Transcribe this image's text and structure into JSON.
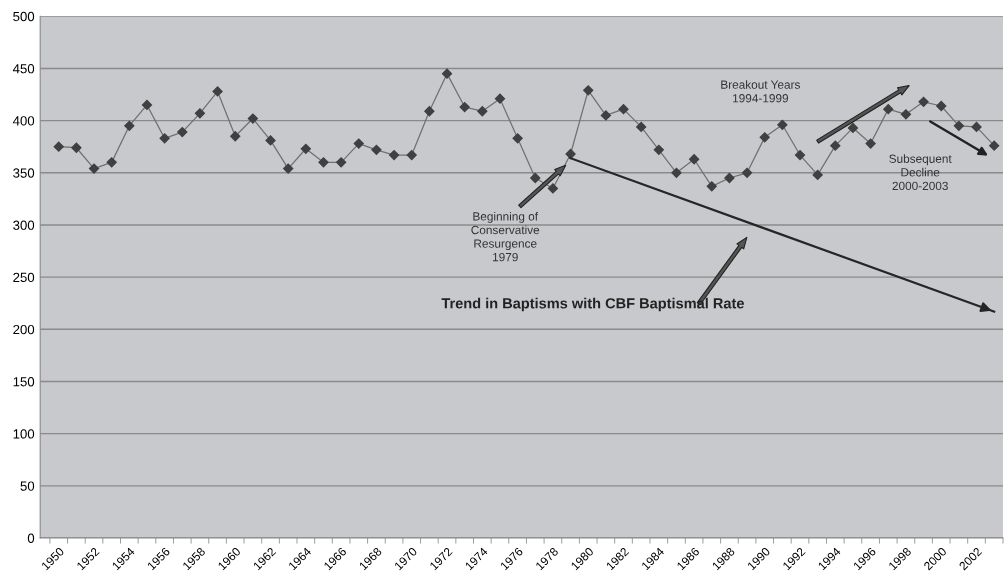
{
  "chart_data": {
    "type": "line",
    "categories": [
      "1950",
      null,
      "1952",
      null,
      "1954",
      null,
      "1956",
      null,
      "1958",
      null,
      "1960",
      null,
      "1962",
      null,
      "1964",
      null,
      "1966",
      null,
      "1968",
      null,
      "1970",
      null,
      "1972",
      null,
      "1974",
      null,
      "1976",
      null,
      "1978",
      null,
      "1980",
      null,
      "1982",
      null,
      "1984",
      null,
      "1986",
      null,
      "1988",
      null,
      "1990",
      null,
      "1992",
      null,
      "1994",
      null,
      "1996",
      null,
      "1998",
      null,
      "2000",
      null,
      "2002",
      null
    ],
    "series": [
      {
        "color": "#404040",
        "marker": "diamond",
        "values": [
          375,
          374,
          354,
          360,
          395,
          415,
          383,
          389,
          407,
          428,
          385,
          402,
          381,
          354,
          373,
          360,
          360,
          378,
          372,
          367,
          367,
          409,
          445,
          413,
          409,
          421,
          383,
          345,
          335,
          368,
          429,
          405,
          411,
          394,
          372,
          350,
          363,
          337,
          345,
          350,
          384,
          396,
          367,
          348,
          376,
          393,
          378,
          411,
          406,
          418,
          414,
          395,
          394,
          376
        ]
      },
      {
        "name": "Trend in Baptisms with CBF Baptismal Rate",
        "color": "#262626",
        "marker": "none",
        "values": [
          null,
          null,
          null,
          null,
          null,
          null,
          null,
          null,
          null,
          null,
          null,
          null,
          null,
          null,
          null,
          null,
          null,
          null,
          null,
          null,
          null,
          null,
          null,
          null,
          null,
          null,
          null,
          null,
          null,
          364,
          null,
          null,
          null,
          null,
          null,
          null,
          null,
          null,
          null,
          null,
          null,
          null,
          null,
          null,
          null,
          null,
          null,
          null,
          null,
          null,
          null,
          null,
          null,
          217
        ]
      }
    ],
    "ylim": [
      0,
      500
    ],
    "yticks": [
      0,
      50,
      100,
      150,
      200,
      250,
      300,
      350,
      400,
      450,
      500
    ],
    "grid": "y",
    "legend": false,
    "annotations": [
      "Beginning of\nConservative\nResurgence\n1979",
      "Breakout Years\n1994-1999",
      "Subsequent\nDecline\n2000-2003"
    ]
  }
}
